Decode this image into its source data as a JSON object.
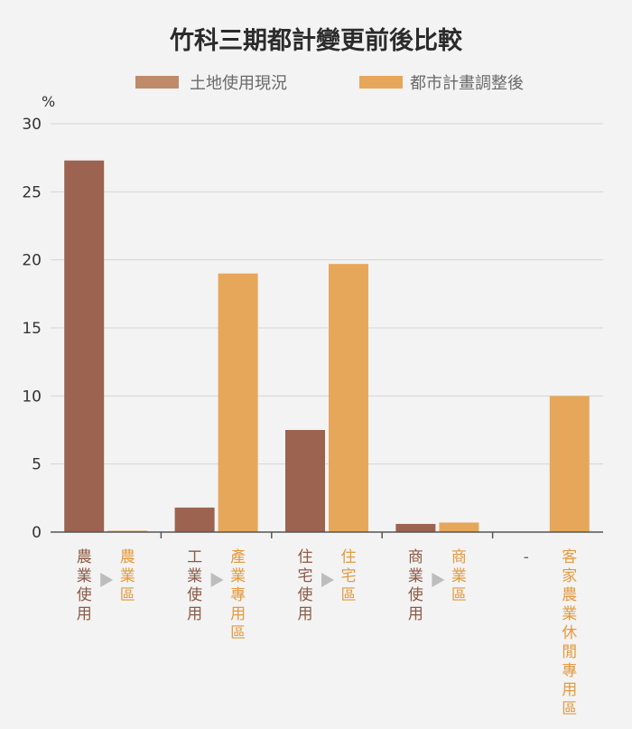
{
  "chart_data": {
    "type": "bar",
    "title": "竹科三期都計變更前後比較",
    "ylabel": "%",
    "ylim": [
      0,
      30
    ],
    "yticks": [
      0,
      5,
      10,
      15,
      20,
      25,
      30
    ],
    "grid": true,
    "legend_position": "top",
    "series": [
      {
        "name": "土地使用現況",
        "color": "#9b6350",
        "legend_color": "#bf8a6a",
        "values": [
          27.3,
          1.8,
          7.5,
          0.6,
          0
        ]
      },
      {
        "name": "都市計畫調整後",
        "color": "#e6a75a",
        "legend_color": "#e6a75a",
        "values": [
          0.1,
          19.0,
          19.7,
          0.7,
          10.0
        ]
      }
    ],
    "categories": [
      {
        "before": "農業使用",
        "after": "農業區"
      },
      {
        "before": "工業使用",
        "after": "產業專用區"
      },
      {
        "before": "住宅使用",
        "after": "住宅區"
      },
      {
        "before": "商業使用",
        "after": "商業區"
      },
      {
        "before": "-",
        "after": "客家農業休閒專用區"
      }
    ],
    "arrow_icon": "triangle-right-icon",
    "arrow_color": "#bdbdbd",
    "before_label_color": "#8c5a44",
    "after_label_color": "#e29a3f"
  }
}
